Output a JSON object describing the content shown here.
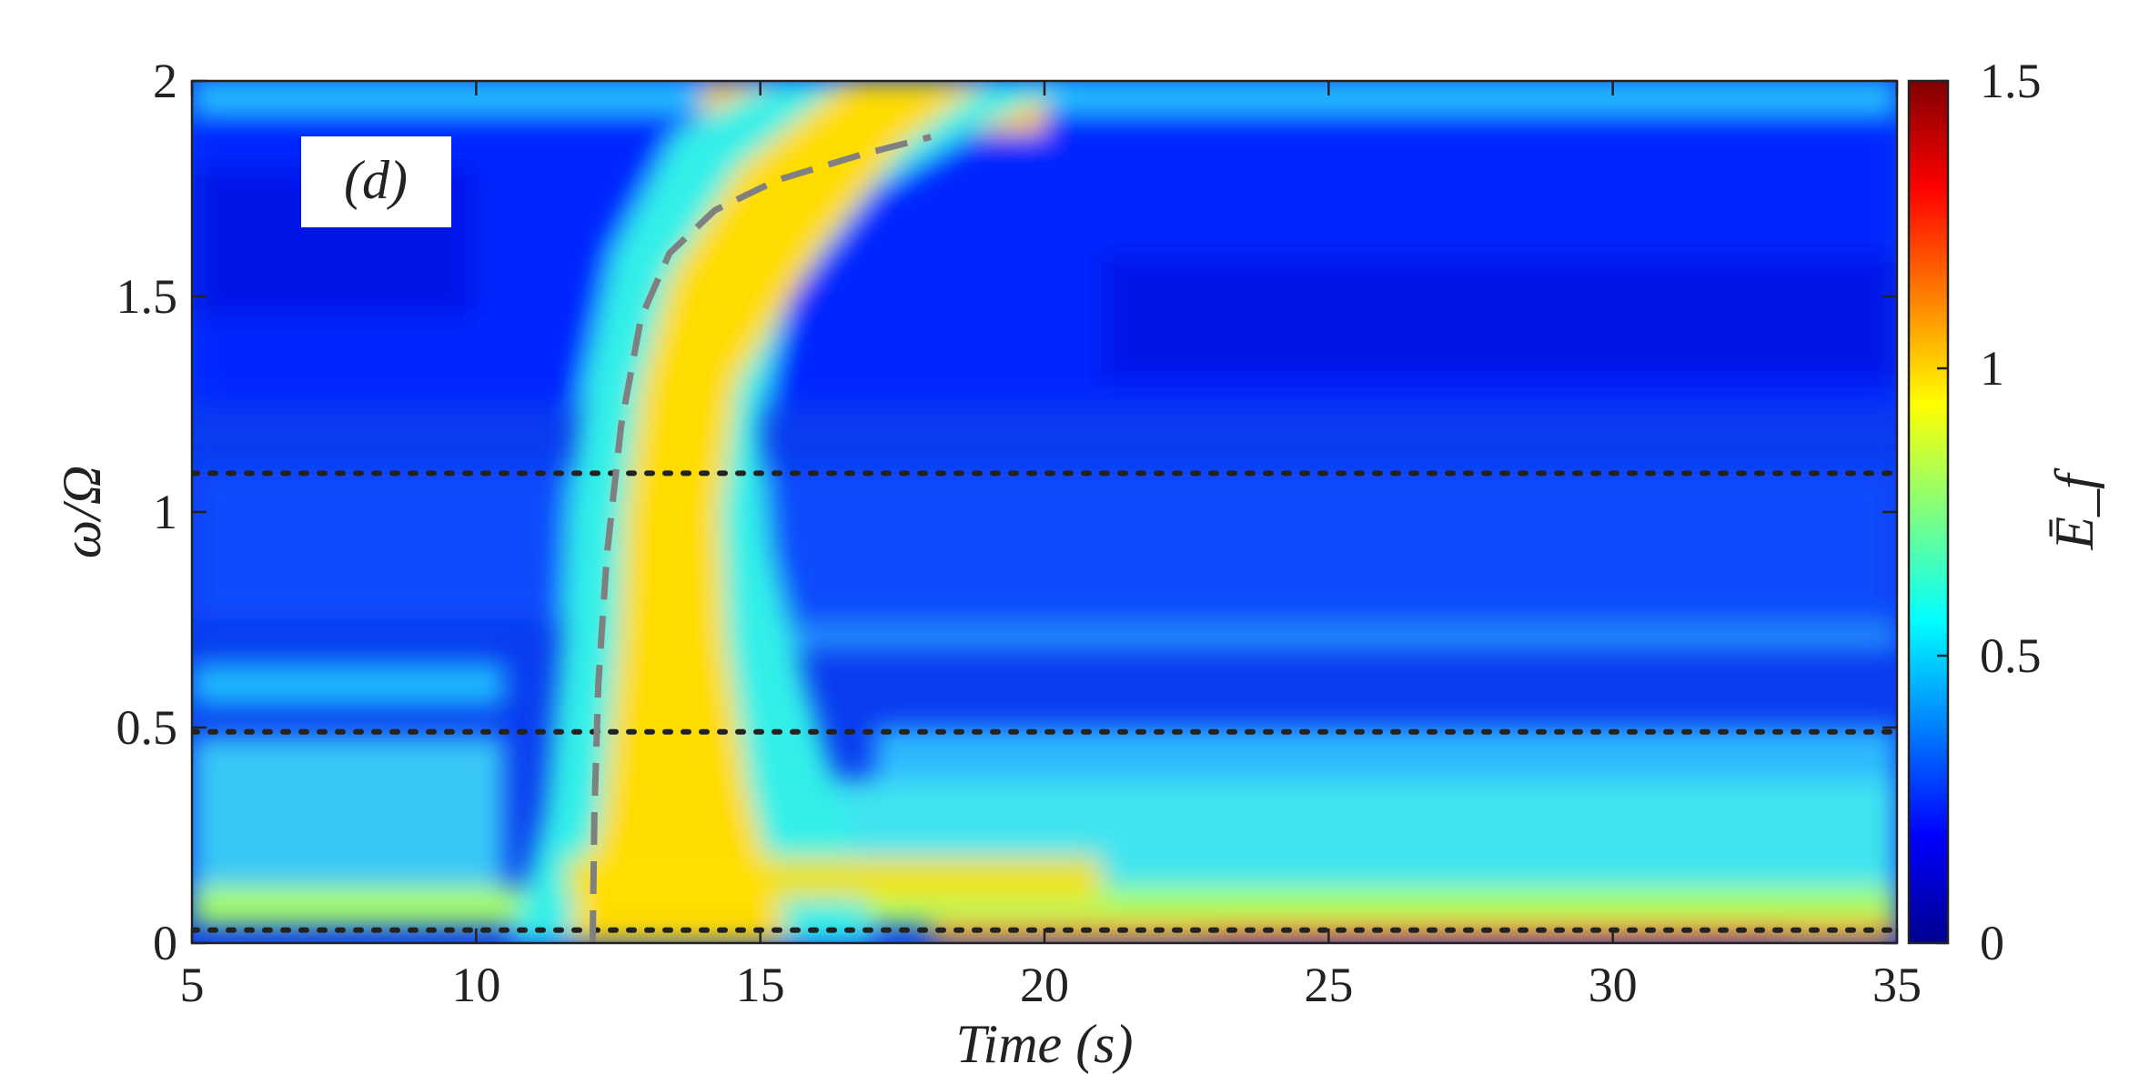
{
  "chart_data": {
    "type": "heatmap",
    "panel_label": "(d)",
    "xlabel": "Time (s)",
    "ylabel": "ω/Ω",
    "colorbar_label": "Ē_f",
    "xlim": [
      5,
      35
    ],
    "ylim": [
      0,
      2
    ],
    "clim": [
      0,
      1.5
    ],
    "x_ticks": [
      "5",
      "10",
      "15",
      "20",
      "25",
      "30",
      "35"
    ],
    "y_ticks": [
      "0",
      "0.5",
      "1",
      "1.5",
      "2"
    ],
    "colorbar_ticks": [
      "0",
      "0.5",
      "1",
      "1.5"
    ],
    "colormap": "jet",
    "grid": false,
    "reference_lines": [
      {
        "style": "dotted",
        "color": "#222222",
        "y": 1.09
      },
      {
        "style": "dotted",
        "color": "#222222",
        "y": 0.49
      },
      {
        "style": "dotted",
        "color": "#222222",
        "y": 0.03
      }
    ],
    "dashed_curve": {
      "color": "#808080",
      "x": [
        12.05,
        12.08,
        12.15,
        12.3,
        12.55,
        12.9,
        13.4,
        14.2,
        15.3,
        16.8,
        18.0
      ],
      "y": [
        0.0,
        0.3,
        0.6,
        0.9,
        1.2,
        1.45,
        1.6,
        1.7,
        1.77,
        1.83,
        1.87
      ]
    }
  }
}
